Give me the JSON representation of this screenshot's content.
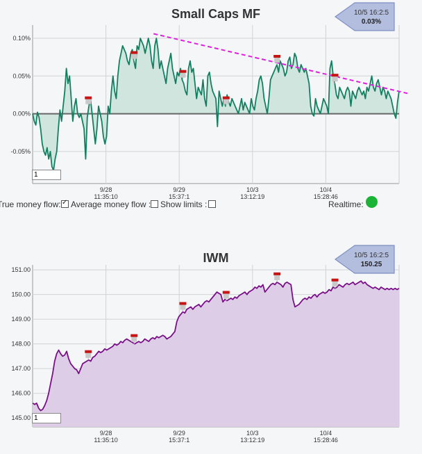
{
  "chart_data": [
    {
      "type": "area",
      "title": "Small Caps MF",
      "callout": {
        "time": "10/5 16:2:5",
        "value": "0.03%"
      },
      "yticks": [
        "0.10%",
        "0.05%",
        "0.00%",
        "-0.05%"
      ],
      "ytick_values": [
        0.1,
        0.05,
        0.0,
        -0.05
      ],
      "ylim": [
        -0.0925,
        0.1175
      ],
      "x_ticks": [
        {
          "date": "9/28",
          "time": "11:35:10",
          "pos": 0.2
        },
        {
          "date": "9/29",
          "time": "15:37:1",
          "pos": 0.4
        },
        {
          "date": "10/3",
          "time": "13:12:19",
          "pos": 0.6
        },
        {
          "date": "10/4",
          "time": "15:28:46",
          "pos": 0.8
        }
      ],
      "zero_line": true,
      "fill_color": "#cfe5de",
      "line_color": "#128060",
      "trend_color": "#e020e0",
      "series": [
        {
          "values": [
            0.0,
            -0.01,
            -0.015,
            0.002,
            -0.005,
            -0.02,
            -0.04,
            -0.05,
            -0.055,
            -0.045,
            -0.06,
            -0.05,
            -0.07,
            -0.075,
            -0.06,
            -0.05,
            -0.02,
            0.005,
            -0.01,
            0.01,
            0.03,
            0.06,
            0.04,
            0.05,
            0.02,
            -0.01,
            0.01,
            0.02,
            0.0,
            -0.005,
            0.0,
            -0.01,
            -0.02,
            -0.06,
            -0.005,
            0.01,
            0.02,
            0.0,
            -0.02,
            -0.04,
            -0.02,
            0.01,
            0.0,
            -0.01,
            -0.03,
            -0.04,
            -0.03,
            0.01,
            0.0,
            0.03,
            0.05,
            0.03,
            0.02,
            0.05,
            0.07,
            0.08,
            0.09,
            0.085,
            0.08,
            0.07,
            0.065,
            0.08,
            0.085,
            0.07,
            0.06,
            0.09,
            0.085,
            0.1,
            0.095,
            0.09,
            0.08,
            0.09,
            0.1,
            0.09,
            0.07,
            0.06,
            0.09,
            0.1,
            0.085,
            0.06,
            0.07,
            0.06,
            0.05,
            0.04,
            0.06,
            0.07,
            0.08,
            0.06,
            0.05,
            0.04,
            0.055,
            0.05,
            0.06,
            0.045,
            0.04,
            0.03,
            0.025,
            0.06,
            0.07,
            0.055,
            0.06,
            0.04,
            0.02,
            0.035,
            0.03,
            0.025,
            0.045,
            0.02,
            0.01,
            0.05,
            0.055,
            0.04,
            0.03,
            0.025,
            0.02,
            -0.017,
            0.03,
            0.02,
            0.01,
            0.02,
            0.01,
            0.025,
            0.015,
            0.01,
            0.02,
            0.015,
            0.01,
            0.005,
            0.0,
            0.01,
            0.02,
            0.005,
            0.015,
            0.01,
            0.005,
            0.0,
            0.02,
            0.01,
            0.005,
            0.02,
            0.03,
            0.045,
            0.05,
            0.04,
            0.02,
            0.01,
            0.0,
            0.02,
            0.045,
            0.05,
            0.055,
            0.06,
            0.065,
            0.055,
            0.07,
            0.065,
            0.06,
            0.05,
            0.055,
            0.07,
            0.075,
            0.06,
            0.065,
            0.08,
            0.075,
            0.06,
            0.055,
            0.065,
            0.06,
            0.055,
            0.06,
            0.05,
            0.04,
            0.01,
            0.0,
            -0.003,
            0.02,
            0.01,
            0.005,
            0.0,
            0.01,
            0.02,
            0.015,
            0.01,
            0.0,
            0.06,
            0.07,
            0.05,
            0.04,
            0.025,
            0.02,
            0.035,
            0.03,
            0.025,
            0.02,
            0.03,
            0.035,
            0.03,
            0.01,
            0.03,
            0.025,
            0.02,
            0.03,
            0.035,
            0.03,
            0.025,
            0.03,
            0.02,
            0.035,
            0.03,
            0.04,
            0.05,
            0.035,
            0.03,
            0.04,
            0.045,
            0.035,
            0.025,
            0.035,
            0.03,
            0.02,
            0.03,
            0.025,
            0.02,
            0.01,
            0.0,
            -0.006,
            0.015,
            0.03
          ]
        }
      ]
    },
    {
      "type": "area",
      "title": "IWM",
      "callout": {
        "time": "10/5 16:2:5",
        "value": "150.25"
      },
      "yticks": [
        "151.00",
        "150.00",
        "149.00",
        "148.00",
        "147.00",
        "146.00",
        "145.00"
      ],
      "ytick_values": [
        151,
        150,
        149,
        148,
        147,
        146,
        145
      ],
      "ylim": [
        144.64,
        151.2
      ],
      "x_ticks": [
        {
          "date": "9/28",
          "time": "11:35:10",
          "pos": 0.2
        },
        {
          "date": "9/29",
          "time": "15:37:1",
          "pos": 0.4
        },
        {
          "date": "10/3",
          "time": "13:12:19",
          "pos": 0.6
        },
        {
          "date": "10/4",
          "time": "15:28:46",
          "pos": 0.8
        }
      ],
      "fill_color": "#ddcde6",
      "line_color": "#7a0f88",
      "series": [
        {
          "values": [
            145.6,
            145.55,
            145.6,
            145.4,
            145.3,
            145.35,
            145.5,
            145.7,
            146.0,
            146.4,
            146.8,
            147.3,
            147.6,
            147.75,
            147.6,
            147.5,
            147.55,
            147.7,
            147.4,
            147.2,
            147.1,
            147.0,
            146.95,
            146.8,
            147.0,
            147.2,
            147.25,
            147.3,
            147.35,
            147.3,
            147.45,
            147.5,
            147.6,
            147.7,
            147.65,
            147.7,
            147.8,
            147.75,
            147.8,
            147.85,
            147.9,
            148.0,
            147.95,
            148.0,
            148.1,
            148.05,
            148.15,
            148.2,
            148.15,
            148.1,
            148.05,
            148.0,
            148.05,
            148.1,
            148.05,
            148.1,
            148.2,
            148.15,
            148.1,
            148.2,
            148.25,
            148.2,
            148.3,
            148.25,
            148.3,
            148.35,
            148.3,
            148.2,
            148.25,
            148.3,
            148.4,
            148.5,
            148.9,
            149.1,
            149.2,
            149.3,
            149.25,
            149.4,
            149.45,
            149.5,
            149.4,
            149.5,
            149.55,
            149.6,
            149.5,
            149.6,
            149.7,
            149.75,
            149.7,
            149.8,
            149.9,
            150.0,
            150.1,
            150.05,
            150.0,
            149.7,
            149.8,
            149.75,
            149.8,
            149.85,
            149.8,
            149.9,
            149.85,
            149.95,
            150.0,
            150.05,
            150.1,
            150.0,
            150.1,
            150.15,
            150.2,
            150.3,
            150.25,
            150.35,
            150.3,
            150.4,
            150.1,
            150.2,
            150.3,
            150.4,
            150.45,
            150.4,
            150.5,
            150.45,
            150.4,
            150.3,
            150.45,
            150.5,
            150.45,
            150.4,
            149.8,
            149.5,
            149.55,
            149.6,
            149.7,
            149.8,
            149.85,
            149.8,
            149.9,
            149.85,
            149.95,
            150.0,
            149.9,
            150.0,
            150.05,
            150.1,
            150.05,
            150.1,
            150.2,
            150.15,
            150.3,
            150.25,
            150.3,
            150.4,
            150.35,
            150.3,
            150.4,
            150.45,
            150.4,
            150.45,
            150.5,
            150.4,
            150.45,
            150.5,
            150.55,
            150.45,
            150.5,
            150.4,
            150.35,
            150.3,
            150.25,
            150.3,
            150.25,
            150.2,
            150.3,
            150.25,
            150.2,
            150.25,
            150.2,
            150.25,
            150.2,
            150.25,
            150.2,
            150.25
          ]
        }
      ]
    }
  ],
  "zoom_inputs": [
    "1",
    "1"
  ],
  "controls": {
    "true_money_flow": "True money flow:",
    "average_money_flow": "Average money flow :",
    "show_limits": "Show limits :",
    "realtime": "Realtime:",
    "true_money_flow_checked": true,
    "average_money_flow_checked": false,
    "show_limits_checked": false
  }
}
